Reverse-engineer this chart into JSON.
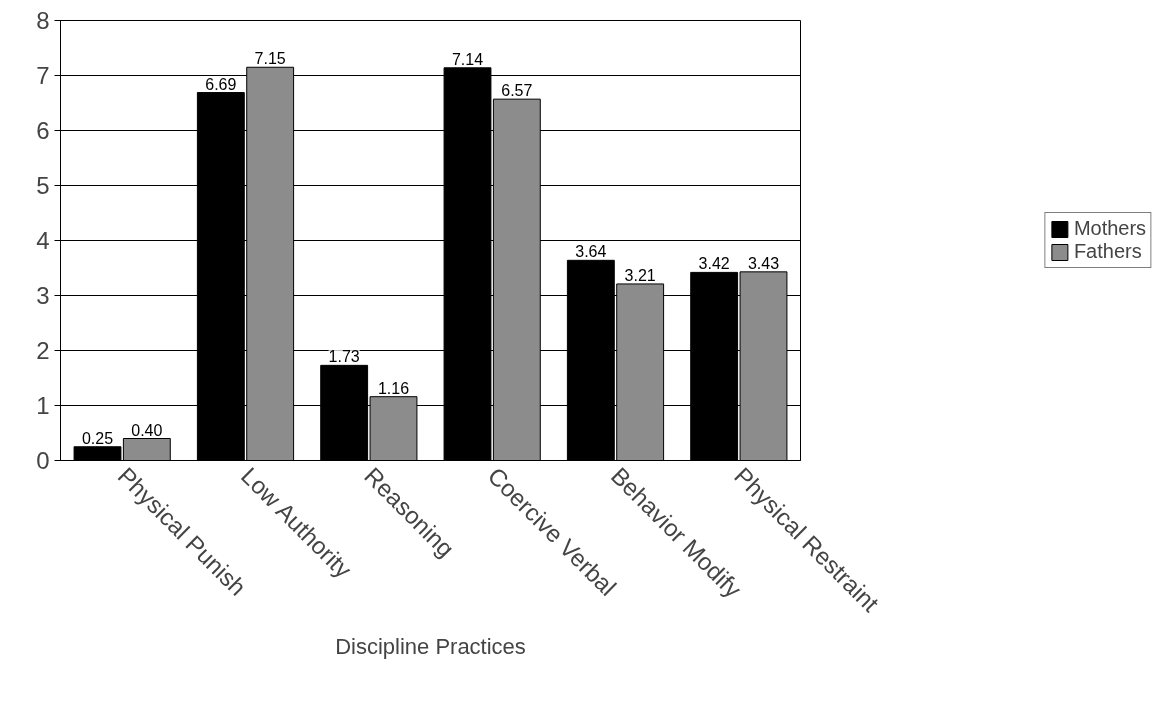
{
  "chart_data": {
    "type": "bar",
    "xlabel": "Discipline Practices",
    "categories": [
      "Physical Punish",
      "Low Authority",
      "Reasoning",
      "Coercive Verbal",
      "Behavior Modify",
      "Physical Restraint"
    ],
    "series": [
      {
        "name": "Mothers",
        "color": "#000000",
        "values": [
          0.25,
          6.69,
          1.73,
          7.14,
          3.64,
          3.42
        ],
        "value_labels": [
          "0.25",
          "6.69",
          "1.73",
          "7.14",
          "3.64",
          "3.42"
        ]
      },
      {
        "name": "Fathers",
        "color": "#8c8c8c",
        "values": [
          0.4,
          7.15,
          1.16,
          6.57,
          3.21,
          3.43
        ],
        "value_labels": [
          "0.40",
          "7.15",
          "1.16",
          "6.57",
          "3.21",
          "3.43"
        ]
      }
    ],
    "ylim": [
      0,
      8
    ],
    "yticks": [
      0,
      1,
      2,
      3,
      4,
      5,
      6,
      7,
      8
    ],
    "grid": "y",
    "legend": "right"
  }
}
